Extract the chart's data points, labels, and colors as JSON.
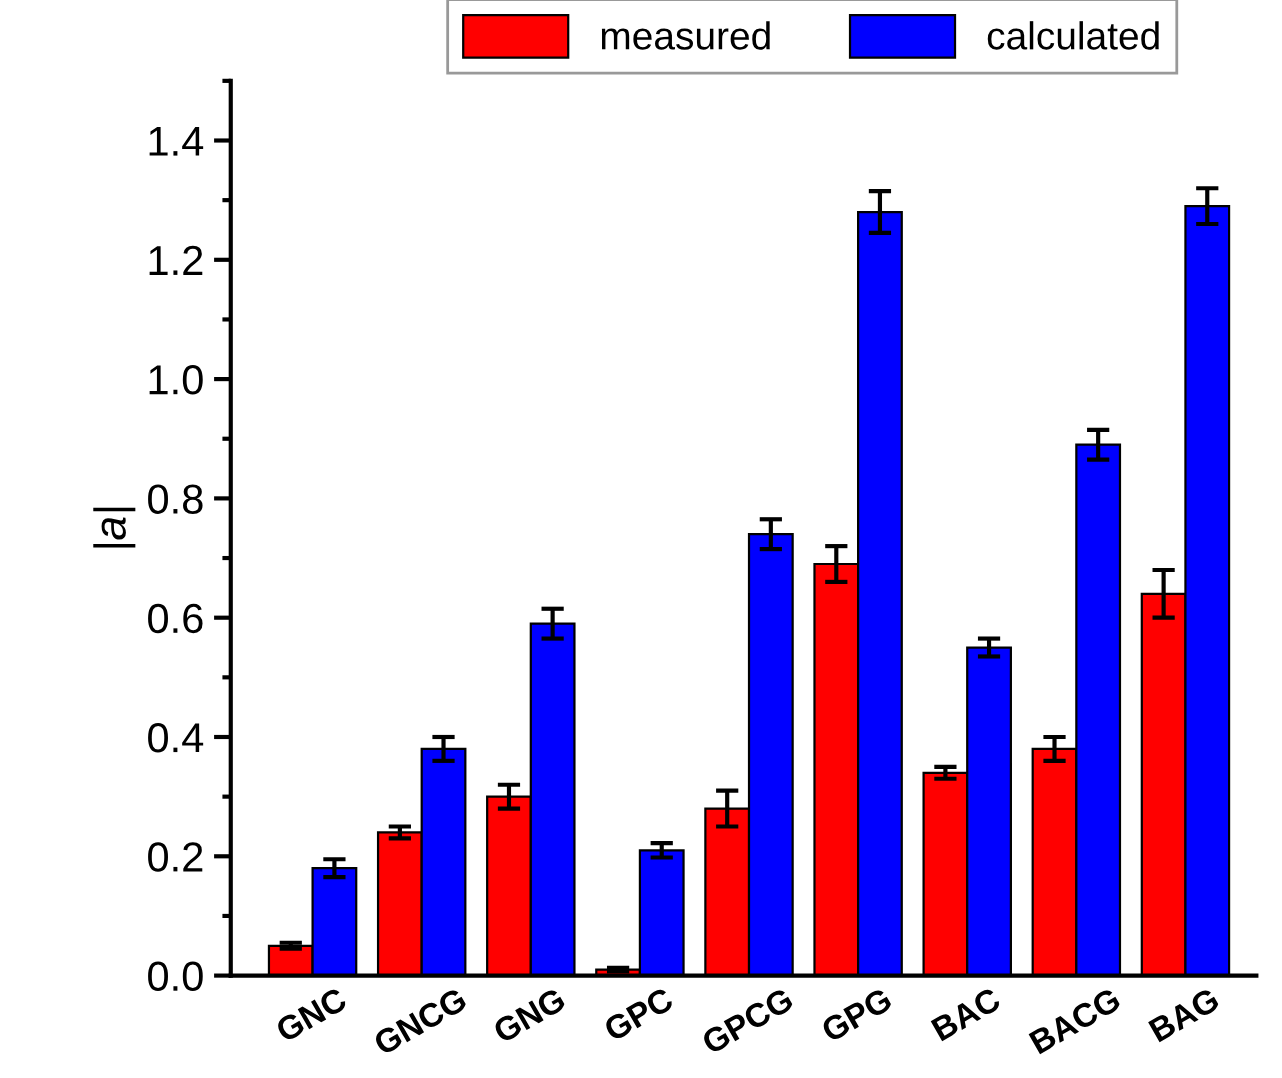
{
  "chart_data": {
    "type": "bar",
    "ylabel": "|a|",
    "categories": [
      "GNC",
      "GNCG",
      "GNG",
      "GPC",
      "GPCG",
      "GPG",
      "BAC",
      "BACG",
      "BAG"
    ],
    "series": [
      {
        "name": "measured",
        "color": "#ff0000",
        "values": [
          0.05,
          0.24,
          0.3,
          0.01,
          0.28,
          0.69,
          0.34,
          0.38,
          0.64
        ],
        "errors": [
          0.005,
          0.01,
          0.02,
          0.003,
          0.03,
          0.03,
          0.01,
          0.02,
          0.04
        ]
      },
      {
        "name": "calculated",
        "color": "#0000ff",
        "values": [
          0.18,
          0.38,
          0.59,
          0.21,
          0.74,
          1.28,
          0.55,
          0.89,
          1.29
        ],
        "errors": [
          0.015,
          0.02,
          0.025,
          0.012,
          0.025,
          0.035,
          0.015,
          0.025,
          0.03
        ]
      }
    ],
    "ylim": [
      0,
      1.5
    ],
    "yticks": [
      {
        "value": 0,
        "label": "0.0"
      },
      0.2,
      0.4,
      0.6,
      0.8,
      {
        "value": 1,
        "label": "1.0"
      },
      1.2,
      1.4
    ],
    "legend": "top right",
    "grid": false
  }
}
